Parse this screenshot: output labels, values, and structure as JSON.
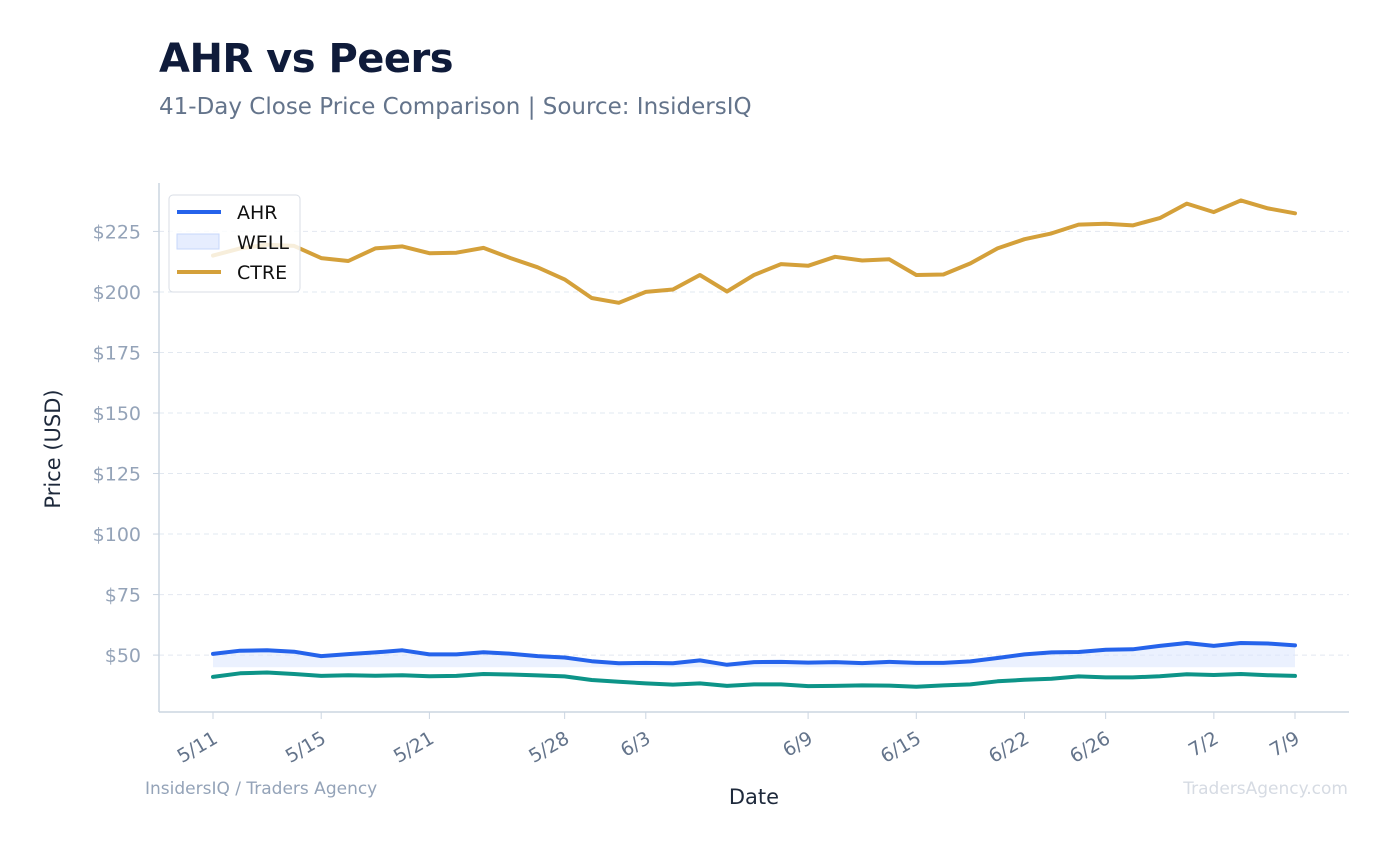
{
  "title": "AHR vs Peers",
  "subtitle": "41-Day Close Price Comparison | Source: InsidersIQ",
  "footer_left": "InsidersIQ / Traders Agency",
  "footer_right": "TradersAgency.com",
  "colors": {
    "AHR": "#2563eb",
    "WELL_fill": "#dbe6fd",
    "WELL_line": "#0d9488",
    "CTRE": "#d4a03a",
    "grid": "#e2e8f0",
    "axis": "#cbd5e1"
  },
  "chart_data": {
    "type": "line",
    "xlabel": "Date",
    "ylabel": "Price (USD)",
    "ylim": [
      26.5,
      245
    ],
    "yticks": [
      50,
      75,
      100,
      125,
      150,
      175,
      200,
      225
    ],
    "ytick_labels": [
      "$50",
      "$75",
      "$100",
      "$125",
      "$150",
      "$175",
      "$200",
      "$225"
    ],
    "grid": true,
    "legend_position": "top-left",
    "x": [
      "5/11",
      "5/12",
      "5/13",
      "5/14",
      "5/15",
      "5/16",
      "5/17",
      "5/18",
      "5/21",
      "5/22",
      "5/23",
      "5/24",
      "5/25",
      "5/28",
      "5/29",
      "5/30",
      "6/3",
      "6/4",
      "6/5",
      "6/6",
      "6/7",
      "6/8",
      "6/9",
      "6/10",
      "6/11",
      "6/12",
      "6/15",
      "6/16",
      "6/17",
      "6/18",
      "6/22",
      "6/23",
      "6/24",
      "6/26",
      "6/27",
      "6/28",
      "6/29",
      "7/2",
      "7/3",
      "7/6",
      "7/9"
    ],
    "xticks": [
      "5/11",
      "5/15",
      "5/21",
      "5/28",
      "6/3",
      "6/9",
      "6/15",
      "6/22",
      "6/26",
      "7/2",
      "7/9"
    ],
    "series": [
      {
        "name": "AHR",
        "style": "line",
        "values": [
          50.5,
          51.8,
          52.0,
          51.4,
          49.6,
          50.4,
          51.1,
          52.0,
          50.3,
          50.3,
          51.2,
          50.6,
          49.6,
          49.0,
          47.5,
          46.6,
          46.8,
          46.6,
          47.8,
          46.0,
          47.1,
          47.2,
          46.9,
          47.1,
          46.7,
          47.2,
          46.8,
          46.8,
          47.4,
          48.8,
          50.3,
          51.1,
          51.3,
          52.2,
          52.4,
          53.8,
          55.0,
          53.8,
          55.0,
          54.8,
          54.0
        ]
      },
      {
        "name": "WELL",
        "style": "band",
        "values": [
          50.5,
          51.8,
          52.0,
          51.4,
          49.6,
          50.4,
          51.1,
          52.0,
          50.3,
          50.3,
          51.2,
          50.6,
          49.6,
          49.0,
          47.5,
          46.6,
          46.8,
          46.6,
          47.8,
          46.0,
          47.1,
          47.2,
          46.9,
          47.1,
          46.7,
          47.2,
          46.8,
          46.8,
          47.4,
          48.8,
          50.3,
          51.1,
          51.3,
          52.2,
          52.4,
          53.8,
          55.0,
          53.8,
          55.0,
          54.8,
          54.0
        ],
        "band_floor": 45.0
      },
      {
        "name": "",
        "style": "line",
        "values": [
          41.0,
          42.5,
          42.8,
          42.2,
          41.4,
          41.7,
          41.5,
          41.7,
          41.3,
          41.4,
          42.2,
          42.0,
          41.6,
          41.2,
          39.7,
          39.0,
          38.3,
          37.8,
          38.3,
          37.3,
          37.9,
          37.9,
          37.2,
          37.3,
          37.5,
          37.4,
          36.9,
          37.5,
          37.9,
          39.2,
          39.8,
          40.2,
          41.2,
          40.8,
          40.8,
          41.3,
          42.1,
          41.8,
          42.2,
          41.7,
          41.4
        ]
      },
      {
        "name": "CTRE",
        "style": "line",
        "values": [
          215.0,
          218.0,
          219.5,
          219.0,
          214.0,
          212.8,
          218.0,
          218.8,
          216.0,
          216.2,
          218.2,
          214.0,
          210.2,
          205.2,
          197.5,
          195.5,
          200.0,
          201.0,
          207.0,
          200.2,
          207.0,
          211.5,
          210.8,
          214.5,
          213.0,
          213.5,
          207.0,
          207.2,
          211.8,
          218.0,
          221.8,
          224.2,
          227.8,
          228.2,
          227.5,
          230.5,
          236.5,
          233.0,
          237.8,
          234.5,
          232.5
        ]
      }
    ]
  }
}
